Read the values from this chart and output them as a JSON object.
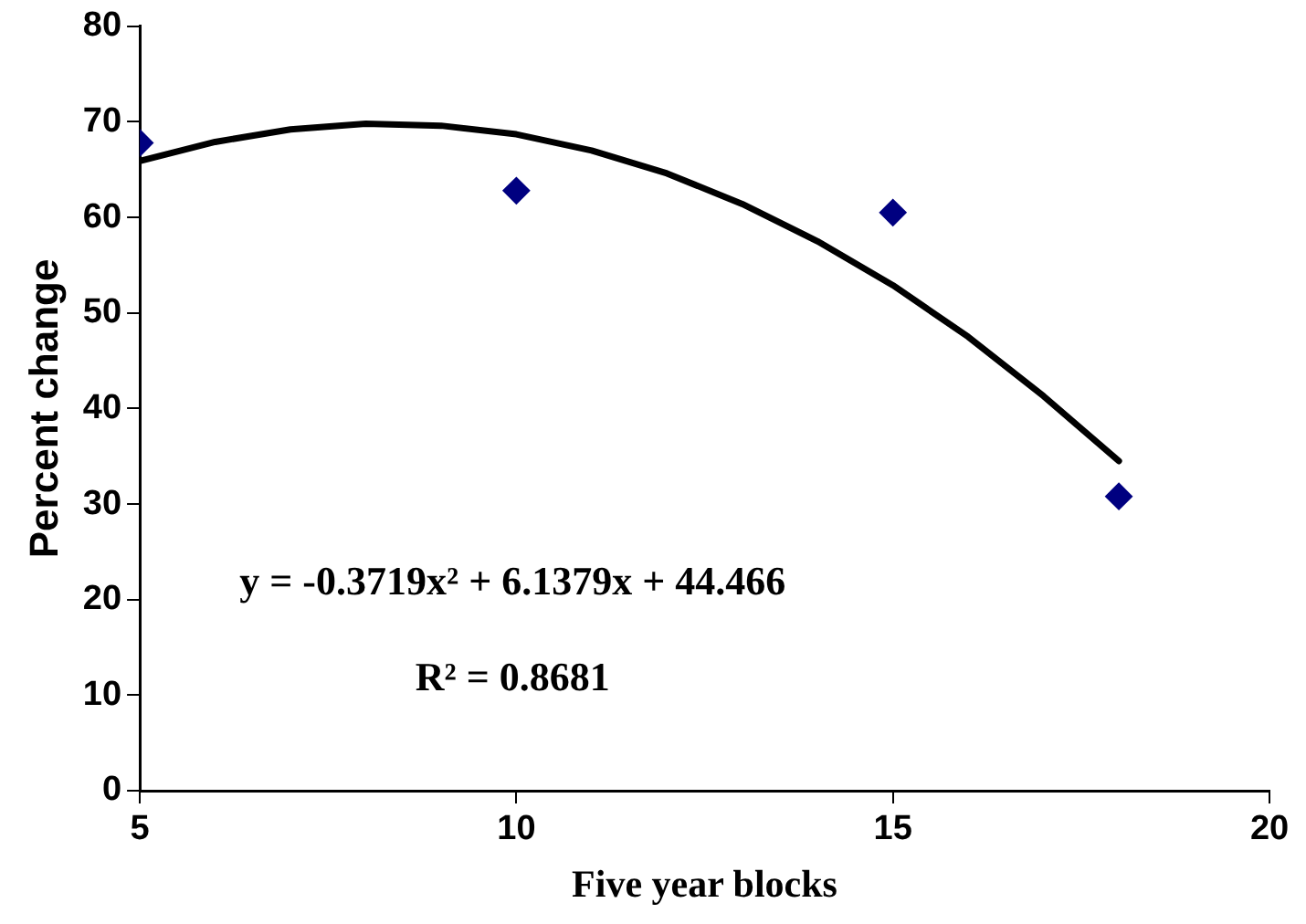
{
  "chart_data": {
    "type": "scatter",
    "xlabel": "Five year blocks",
    "ylabel": "Percent change",
    "series": [
      {
        "color": "#000080",
        "x": [
          5,
          10,
          15,
          18
        ],
        "values": [
          67.8,
          62.8,
          60.5,
          30.8
        ],
        "marker": "diamond"
      },
      {
        "type": "line",
        "color": "#000000",
        "x": [
          5,
          6,
          7,
          8,
          9,
          10,
          11,
          12,
          13,
          14,
          15,
          16,
          17,
          18
        ],
        "values": [
          65.9,
          67.9,
          69.2,
          69.8,
          69.6,
          68.7,
          67.0,
          64.6,
          61.4,
          57.5,
          52.9,
          47.5,
          41.3,
          34.5
        ],
        "marker": "none",
        "line_style": "solid"
      }
    ],
    "xlim": [
      5,
      20
    ],
    "xticks": [
      5,
      10,
      15,
      20
    ],
    "ylim": [
      0,
      80
    ],
    "yticks": [
      0,
      10,
      20,
      30,
      40,
      50,
      60,
      70,
      80
    ],
    "grid": false,
    "legend": false,
    "annotations": [
      "y = -0.3719x² + 6.1379x + 44.466",
      "R² = 0.8681"
    ]
  }
}
